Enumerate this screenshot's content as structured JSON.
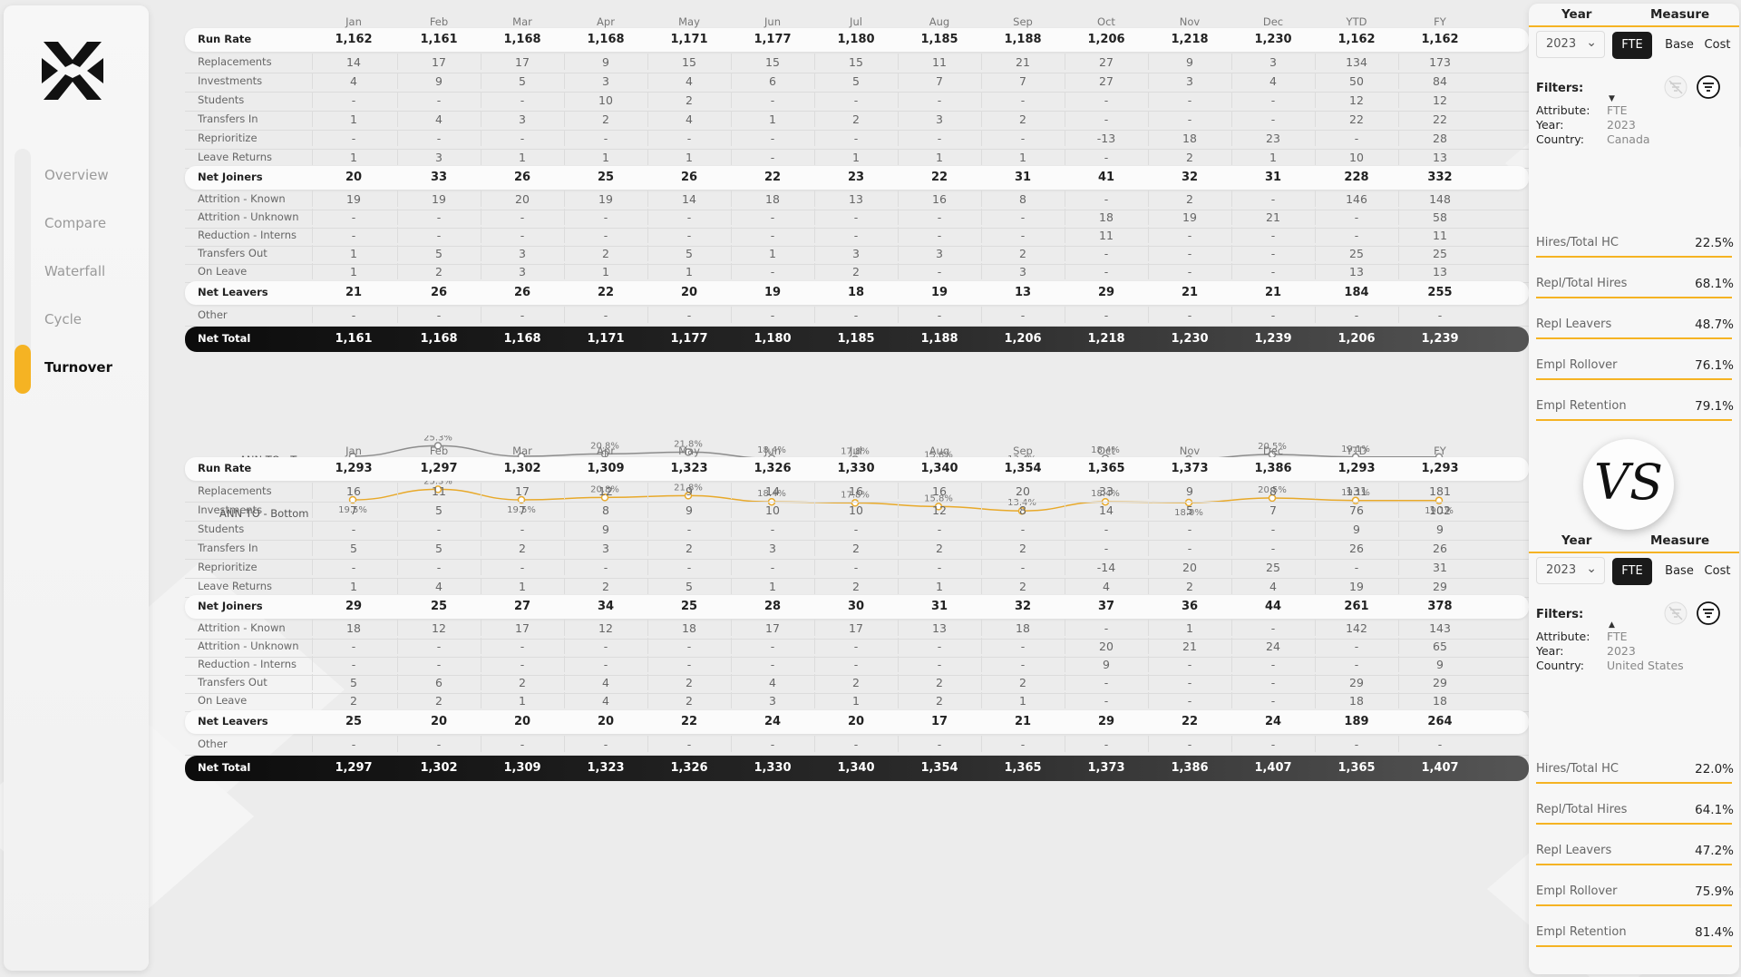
{
  "sidebar": {
    "items": [
      {
        "label": "Overview"
      },
      {
        "label": "Compare"
      },
      {
        "label": "Waterfall"
      },
      {
        "label": "Cycle"
      },
      {
        "label": "Turnover"
      }
    ]
  },
  "months": [
    "Jan",
    "Feb",
    "Mar",
    "Apr",
    "May",
    "Jun",
    "Jul",
    "Aug",
    "Sep",
    "Oct",
    "Nov",
    "Dec",
    "YTD",
    "FY"
  ],
  "top_table": {
    "rows": [
      {
        "label": "Run Rate",
        "style": "pill",
        "values": [
          "1,162",
          "1,161",
          "1,168",
          "1,168",
          "1,171",
          "1,177",
          "1,180",
          "1,185",
          "1,188",
          "1,206",
          "1,218",
          "1,230",
          "1,162",
          "1,162"
        ]
      },
      {
        "label": "Replacements",
        "style": "sep",
        "values": [
          "14",
          "17",
          "17",
          "9",
          "15",
          "15",
          "15",
          "11",
          "21",
          "27",
          "9",
          "3",
          "134",
          "173"
        ]
      },
      {
        "label": "Investments",
        "style": "sep",
        "values": [
          "4",
          "9",
          "5",
          "3",
          "4",
          "6",
          "5",
          "7",
          "7",
          "27",
          "3",
          "4",
          "50",
          "84"
        ]
      },
      {
        "label": "Students",
        "style": "sep",
        "values": [
          "-",
          "-",
          "-",
          "10",
          "2",
          "-",
          "-",
          "-",
          "-",
          "-",
          "-",
          "-",
          "12",
          "12"
        ]
      },
      {
        "label": "Transfers In",
        "style": "sep",
        "values": [
          "1",
          "4",
          "3",
          "2",
          "4",
          "1",
          "2",
          "3",
          "2",
          "-",
          "-",
          "-",
          "22",
          "22"
        ]
      },
      {
        "label": "Reprioritize",
        "style": "sep",
        "values": [
          "-",
          "-",
          "-",
          "-",
          "-",
          "-",
          "-",
          "-",
          "-",
          "-13",
          "18",
          "23",
          "-",
          "28"
        ]
      },
      {
        "label": "Leave Returns",
        "style": "sep",
        "values": [
          "1",
          "3",
          "1",
          "1",
          "1",
          "-",
          "1",
          "1",
          "1",
          "-",
          "2",
          "1",
          "10",
          "13"
        ]
      },
      {
        "label": "Net Joiners",
        "style": "pill",
        "values": [
          "20",
          "33",
          "26",
          "25",
          "26",
          "22",
          "23",
          "22",
          "31",
          "41",
          "32",
          "31",
          "228",
          "332"
        ]
      },
      {
        "label": "Attrition - Known",
        "style": "sep",
        "values": [
          "19",
          "19",
          "20",
          "19",
          "14",
          "18",
          "13",
          "16",
          "8",
          "-",
          "2",
          "-",
          "146",
          "148"
        ]
      },
      {
        "label": "Attrition - Unknown",
        "style": "sep",
        "values": [
          "-",
          "-",
          "-",
          "-",
          "-",
          "-",
          "-",
          "-",
          "-",
          "18",
          "19",
          "21",
          "-",
          "58"
        ]
      },
      {
        "label": "Reduction - Interns",
        "style": "sep",
        "values": [
          "-",
          "-",
          "-",
          "-",
          "-",
          "-",
          "-",
          "-",
          "-",
          "11",
          "-",
          "-",
          "-",
          "11"
        ]
      },
      {
        "label": "Transfers Out",
        "style": "sep",
        "values": [
          "1",
          "5",
          "3",
          "2",
          "5",
          "1",
          "3",
          "3",
          "2",
          "-",
          "-",
          "-",
          "25",
          "25"
        ]
      },
      {
        "label": "On Leave",
        "style": "sep",
        "values": [
          "1",
          "2",
          "3",
          "1",
          "1",
          "-",
          "2",
          "-",
          "3",
          "-",
          "-",
          "-",
          "13",
          "13"
        ]
      },
      {
        "label": "Net Leavers",
        "style": "pill",
        "values": [
          "21",
          "26",
          "26",
          "22",
          "20",
          "19",
          "18",
          "19",
          "13",
          "29",
          "21",
          "21",
          "184",
          "255"
        ]
      },
      {
        "label": "Other",
        "style": "sep",
        "values": [
          "-",
          "-",
          "-",
          "-",
          "-",
          "-",
          "-",
          "-",
          "-",
          "-",
          "-",
          "-",
          "-",
          "-"
        ]
      },
      {
        "label": "Net Total",
        "style": "total",
        "values": [
          "1,161",
          "1,168",
          "1,168",
          "1,171",
          "1,177",
          "1,180",
          "1,185",
          "1,188",
          "1,206",
          "1,218",
          "1,230",
          "1,239",
          "1,206",
          "1,239"
        ]
      }
    ]
  },
  "bottom_table": {
    "rows": [
      {
        "label": "Run Rate",
        "style": "pill",
        "values": [
          "1,293",
          "1,297",
          "1,302",
          "1,309",
          "1,323",
          "1,326",
          "1,330",
          "1,340",
          "1,354",
          "1,365",
          "1,373",
          "1,386",
          "1,293",
          "1,293"
        ]
      },
      {
        "label": "Replacements",
        "style": "sep",
        "values": [
          "16",
          "11",
          "17",
          "12",
          "9",
          "14",
          "16",
          "16",
          "20",
          "33",
          "9",
          "8",
          "131",
          "181"
        ]
      },
      {
        "label": "Investments",
        "style": "sep",
        "values": [
          "7",
          "5",
          "7",
          "8",
          "9",
          "10",
          "10",
          "12",
          "8",
          "14",
          "5",
          "7",
          "76",
          "102"
        ]
      },
      {
        "label": "Students",
        "style": "sep",
        "values": [
          "-",
          "-",
          "-",
          "9",
          "-",
          "-",
          "-",
          "-",
          "-",
          "-",
          "-",
          "-",
          "9",
          "9"
        ]
      },
      {
        "label": "Transfers In",
        "style": "sep",
        "values": [
          "5",
          "5",
          "2",
          "3",
          "2",
          "3",
          "2",
          "2",
          "2",
          "-",
          "-",
          "-",
          "26",
          "26"
        ]
      },
      {
        "label": "Reprioritize",
        "style": "sep",
        "values": [
          "-",
          "-",
          "-",
          "-",
          "-",
          "-",
          "-",
          "-",
          "-",
          "-14",
          "20",
          "25",
          "-",
          "31"
        ]
      },
      {
        "label": "Leave Returns",
        "style": "sep",
        "values": [
          "1",
          "4",
          "1",
          "2",
          "5",
          "1",
          "2",
          "1",
          "2",
          "4",
          "2",
          "4",
          "19",
          "29"
        ]
      },
      {
        "label": "Net Joiners",
        "style": "pill",
        "values": [
          "29",
          "25",
          "27",
          "34",
          "25",
          "28",
          "30",
          "31",
          "32",
          "37",
          "36",
          "44",
          "261",
          "378"
        ]
      },
      {
        "label": "Attrition - Known",
        "style": "sep",
        "values": [
          "18",
          "12",
          "17",
          "12",
          "18",
          "17",
          "17",
          "13",
          "18",
          "-",
          "1",
          "-",
          "142",
          "143"
        ]
      },
      {
        "label": "Attrition - Unknown",
        "style": "sep",
        "values": [
          "-",
          "-",
          "-",
          "-",
          "-",
          "-",
          "-",
          "-",
          "-",
          "20",
          "21",
          "24",
          "-",
          "65"
        ]
      },
      {
        "label": "Reduction - Interns",
        "style": "sep",
        "values": [
          "-",
          "-",
          "-",
          "-",
          "-",
          "-",
          "-",
          "-",
          "-",
          "9",
          "-",
          "-",
          "-",
          "9"
        ]
      },
      {
        "label": "Transfers Out",
        "style": "sep",
        "values": [
          "5",
          "6",
          "2",
          "4",
          "2",
          "4",
          "2",
          "2",
          "2",
          "-",
          "-",
          "-",
          "29",
          "29"
        ]
      },
      {
        "label": "On Leave",
        "style": "sep",
        "values": [
          "2",
          "2",
          "1",
          "4",
          "2",
          "3",
          "1",
          "2",
          "1",
          "-",
          "-",
          "-",
          "18",
          "18"
        ]
      },
      {
        "label": "Net Leavers",
        "style": "pill",
        "values": [
          "25",
          "20",
          "20",
          "20",
          "22",
          "24",
          "20",
          "17",
          "21",
          "29",
          "22",
          "24",
          "189",
          "264"
        ]
      },
      {
        "label": "Other",
        "style": "sep",
        "values": [
          "-",
          "-",
          "-",
          "-",
          "-",
          "-",
          "-",
          "-",
          "-",
          "-",
          "-",
          "-",
          "-",
          "-"
        ]
      },
      {
        "label": "Net Total",
        "style": "total",
        "values": [
          "1,297",
          "1,302",
          "1,309",
          "1,323",
          "1,326",
          "1,330",
          "1,340",
          "1,354",
          "1,365",
          "1,373",
          "1,386",
          "1,407",
          "1,365",
          "1,407"
        ]
      }
    ]
  },
  "ann_chart": {
    "top_label": "ANN TO - Top",
    "bottom_label": "ANN TO - Bottom",
    "top_color": "#8c8c8c",
    "bottom_color": "#e8a92a",
    "values": [
      19.5,
      25.3,
      19.5,
      20.8,
      21.8,
      18.4,
      17.8,
      15.8,
      13.4,
      18.4,
      18.0,
      20.5,
      19.1,
      19.1
    ],
    "labels": [
      "19.5%",
      "25.3%",
      "19.5%",
      "20.8%",
      "21.8%",
      "18.4%",
      "17.8%",
      "15.8%",
      "13.4%",
      "18.4%",
      "18.0%",
      "20.5%",
      "19.1%",
      "19.1%"
    ]
  },
  "right_panel": {
    "top": {
      "year_header": "Year",
      "measure_header": "Measure",
      "year_value": "2023",
      "measures": [
        "FTE",
        "Base",
        "Cost"
      ],
      "filters_title": "Filters:",
      "filters": [
        {
          "key": "Attribute:",
          "value": "FTE"
        },
        {
          "key": "Year:",
          "value": "2023"
        },
        {
          "key": "Country:",
          "value": "Canada"
        }
      ],
      "kpis": [
        {
          "label": "Hires/Total HC",
          "value": "22.5%"
        },
        {
          "label": "Repl/Total Hires",
          "value": "68.1%"
        },
        {
          "label": "Repl Leavers",
          "value": "48.7%"
        },
        {
          "label": "Empl Rollover",
          "value": "76.1%"
        },
        {
          "label": "Empl Retention",
          "value": "79.1%"
        }
      ]
    },
    "vs_text": "VS",
    "bottom": {
      "year_header": "Year",
      "measure_header": "Measure",
      "year_value": "2023",
      "measures": [
        "FTE",
        "Base",
        "Cost"
      ],
      "filters_title": "Filters:",
      "filters": [
        {
          "key": "Attribute:",
          "value": "FTE"
        },
        {
          "key": "Year:",
          "value": "2023"
        },
        {
          "key": "Country:",
          "value": "United States"
        }
      ],
      "kpis": [
        {
          "label": "Hires/Total HC",
          "value": "22.0%"
        },
        {
          "label": "Repl/Total Hires",
          "value": "64.1%"
        },
        {
          "label": "Repl Leavers",
          "value": "47.2%"
        },
        {
          "label": "Empl Rollover",
          "value": "75.9%"
        },
        {
          "label": "Empl Retention",
          "value": "81.4%"
        }
      ]
    }
  },
  "colors": {
    "accent": "#f5b323",
    "dark": "#111111"
  }
}
